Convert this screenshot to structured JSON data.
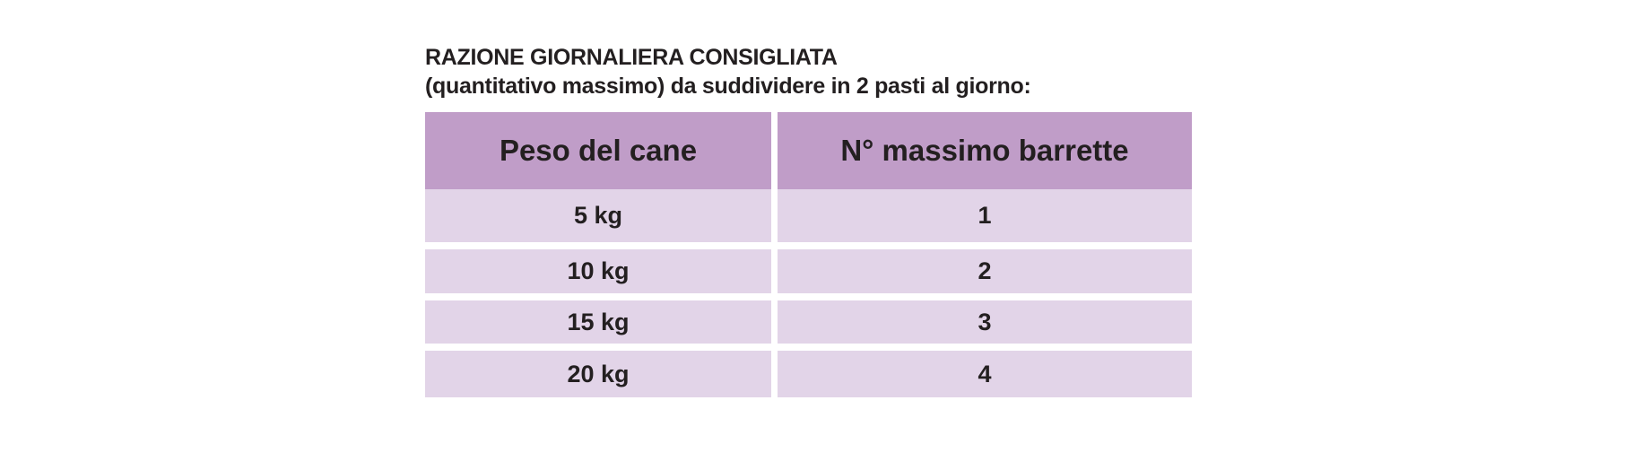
{
  "title": {
    "line1": "RAZIONE GIORNALIERA CONSIGLIATA",
    "line2": "(quantitativo massimo) da suddividere in 2 pasti al giorno:"
  },
  "table": {
    "headers": [
      "Peso del cane",
      "N° massimo barrette"
    ],
    "rows": [
      [
        "5 kg",
        "1"
      ],
      [
        "10 kg",
        "2"
      ],
      [
        "15 kg",
        "3"
      ],
      [
        "20 kg",
        "4"
      ]
    ]
  },
  "colors": {
    "header_bg": "#c09dc8",
    "row_bg": "#e2d4e8",
    "text": "#231f20"
  }
}
